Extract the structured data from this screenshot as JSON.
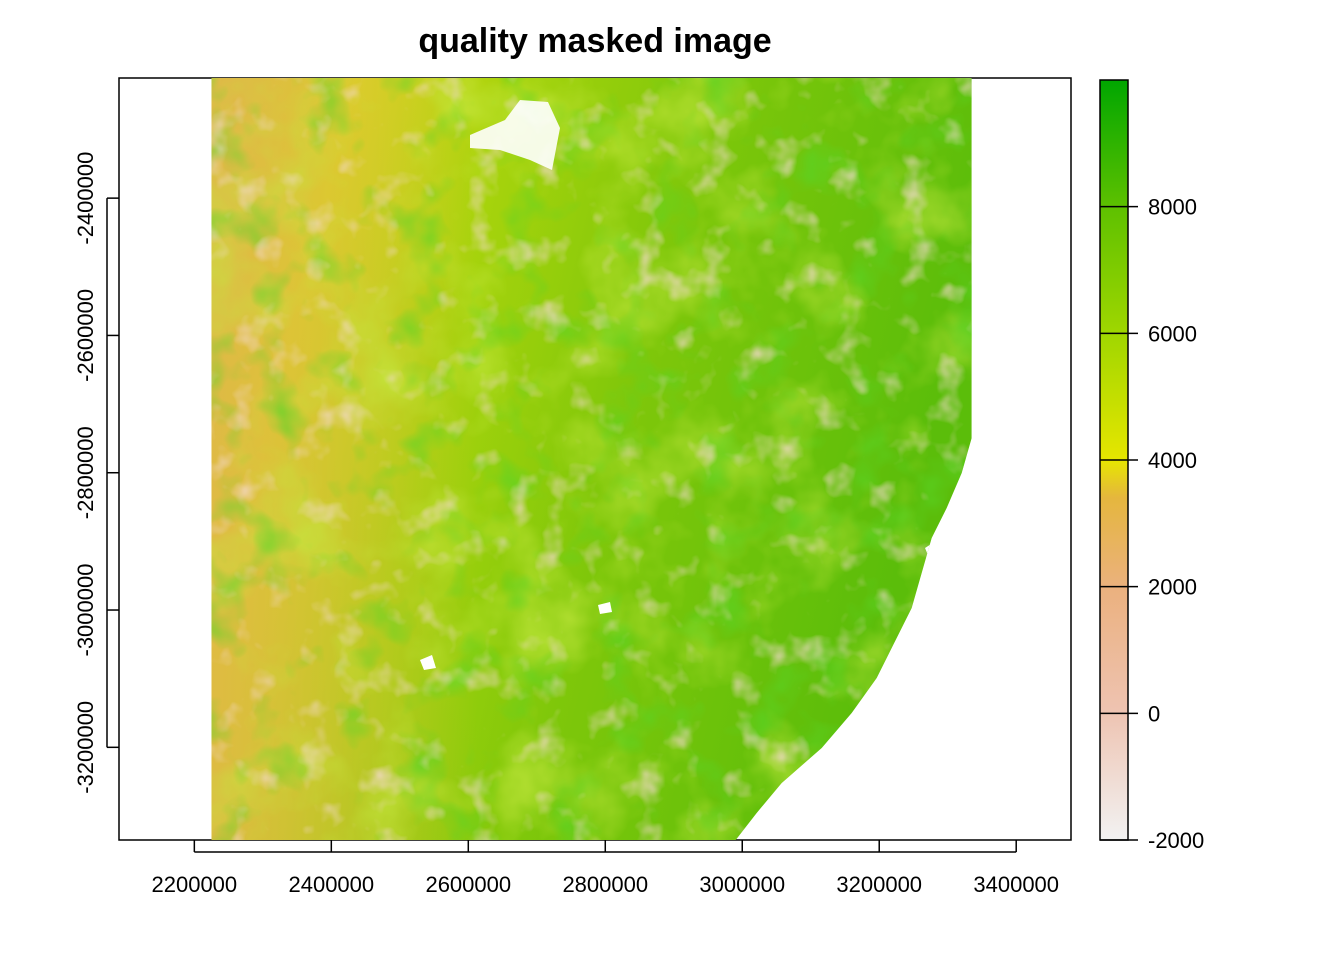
{
  "chart_data": {
    "type": "heatmap",
    "title": "quality masked image",
    "xlabel": "",
    "ylabel": "",
    "xlim": [
      2090000,
      3480000
    ],
    "ylim": [
      -3335000,
      -2225000
    ],
    "x_ticks": [
      2200000,
      2400000,
      2600000,
      2800000,
      3000000,
      3200000,
      3400000
    ],
    "x_tick_labels": [
      "2200000",
      "2400000",
      "2600000",
      "2800000",
      "3000000",
      "3200000",
      "3400000"
    ],
    "y_ticks": [
      -2400000,
      -2600000,
      -2800000,
      -3000000,
      -3200000
    ],
    "y_tick_labels": [
      "-2400000",
      "-2600000",
      "-2800000",
      "-3000000",
      "-3200000"
    ],
    "raster_extent": {
      "xmin": 2225000,
      "xmax": 3335000,
      "ymin": -3335000,
      "ymax": -2225000
    },
    "legend": {
      "position": "right",
      "range": [
        -2000,
        10000
      ],
      "ticks": [
        -2000,
        0,
        2000,
        4000,
        6000,
        8000
      ],
      "tick_labels": [
        "-2000",
        "0",
        "2000",
        "4000",
        "6000",
        "8000"
      ],
      "colors": [
        "#f2f2f2",
        "#eec3b1",
        "#ebb17f",
        "#e5b63e",
        "#e6e600",
        "#9ed600",
        "#5fc100",
        "#00a600"
      ]
    }
  }
}
